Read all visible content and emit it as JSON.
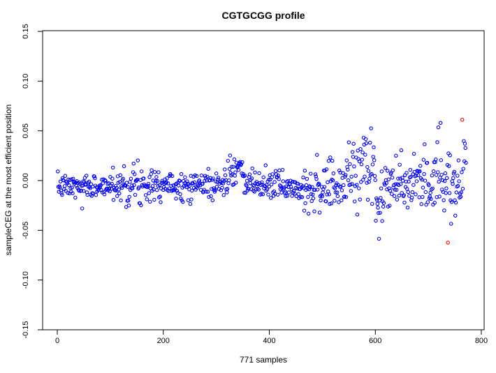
{
  "page": {
    "background": "#ffffff"
  },
  "chart_data": {
    "type": "scatter",
    "title": "CGTGCGG profile",
    "xlabel": "771 samples",
    "ylabel": "sampleCEG at the most efficient position",
    "n_samples": 771,
    "grid": false,
    "legend": null,
    "x_ticks": [
      0,
      200,
      400,
      600,
      800
    ],
    "x_tick_labels": [
      "0",
      "200",
      "400",
      "600",
      "800"
    ],
    "y_ticks": [
      -0.15,
      -0.1,
      -0.05,
      0.0,
      0.05,
      0.1,
      0.15
    ],
    "y_tick_labels": [
      "-0.15",
      "-0.10",
      "-0.05",
      "0.00",
      "0.05",
      "0.10",
      "0.15"
    ],
    "ylim": [
      -0.15,
      0.15
    ],
    "xlim": [
      0,
      800
    ],
    "point_style": {
      "shape": "open-circle",
      "radius_px": 2.2,
      "color": "#0000ff"
    },
    "highlight_color": "#ff0000",
    "red_points": [
      {
        "x": 737,
        "y": -0.0624
      },
      {
        "x": 764,
        "y": 0.0612
      }
    ],
    "blue_overrides": {
      "47": -0.028,
      "592": 0.0525,
      "607": -0.0585,
      "719": 0.0535,
      "723": 0.058
    },
    "blue_generator": {
      "seed": 7,
      "x_from": 1,
      "x_to": 771,
      "segments": [
        {
          "from": 1,
          "to": 99,
          "mean": -0.006,
          "sd": 0.0055,
          "min": -0.021,
          "max": 0.011
        },
        {
          "from": 100,
          "to": 160,
          "mean": -0.004,
          "sd": 0.01,
          "min": -0.03,
          "max": 0.023
        },
        {
          "from": 161,
          "to": 210,
          "mean": -0.002,
          "sd": 0.01,
          "min": -0.028,
          "max": 0.026
        },
        {
          "from": 211,
          "to": 320,
          "mean": -0.004,
          "sd": 0.0075,
          "min": -0.026,
          "max": 0.019
        },
        {
          "from": 321,
          "to": 352,
          "mean": 0.009,
          "sd": 0.008,
          "min": -0.01,
          "max": 0.026
        },
        {
          "from": 353,
          "to": 430,
          "mean": -0.004,
          "sd": 0.0075,
          "min": -0.027,
          "max": 0.017
        },
        {
          "from": 431,
          "to": 465,
          "mean": -0.007,
          "sd": 0.006,
          "min": -0.03,
          "max": 0.009
        },
        {
          "from": 466,
          "to": 545,
          "mean": -0.006,
          "sd": 0.013,
          "min": -0.042,
          "max": 0.026
        },
        {
          "from": 546,
          "to": 562,
          "mean": 0.01,
          "sd": 0.015,
          "min": -0.022,
          "max": 0.044
        },
        {
          "from": 563,
          "to": 600,
          "mean": 0.012,
          "sd": 0.021,
          "min": -0.045,
          "max": 0.053
        },
        {
          "from": 601,
          "to": 616,
          "mean": -0.027,
          "sd": 0.017,
          "min": -0.059,
          "max": 0.01
        },
        {
          "from": 617,
          "to": 690,
          "mean": -0.004,
          "sd": 0.012,
          "min": -0.039,
          "max": 0.045
        },
        {
          "from": 691,
          "to": 732,
          "mean": 0.004,
          "sd": 0.017,
          "min": -0.036,
          "max": 0.058
        },
        {
          "from": 733,
          "to": 771,
          "mean": 0.001,
          "sd": 0.024,
          "min": -0.047,
          "max": 0.056
        }
      ]
    }
  }
}
